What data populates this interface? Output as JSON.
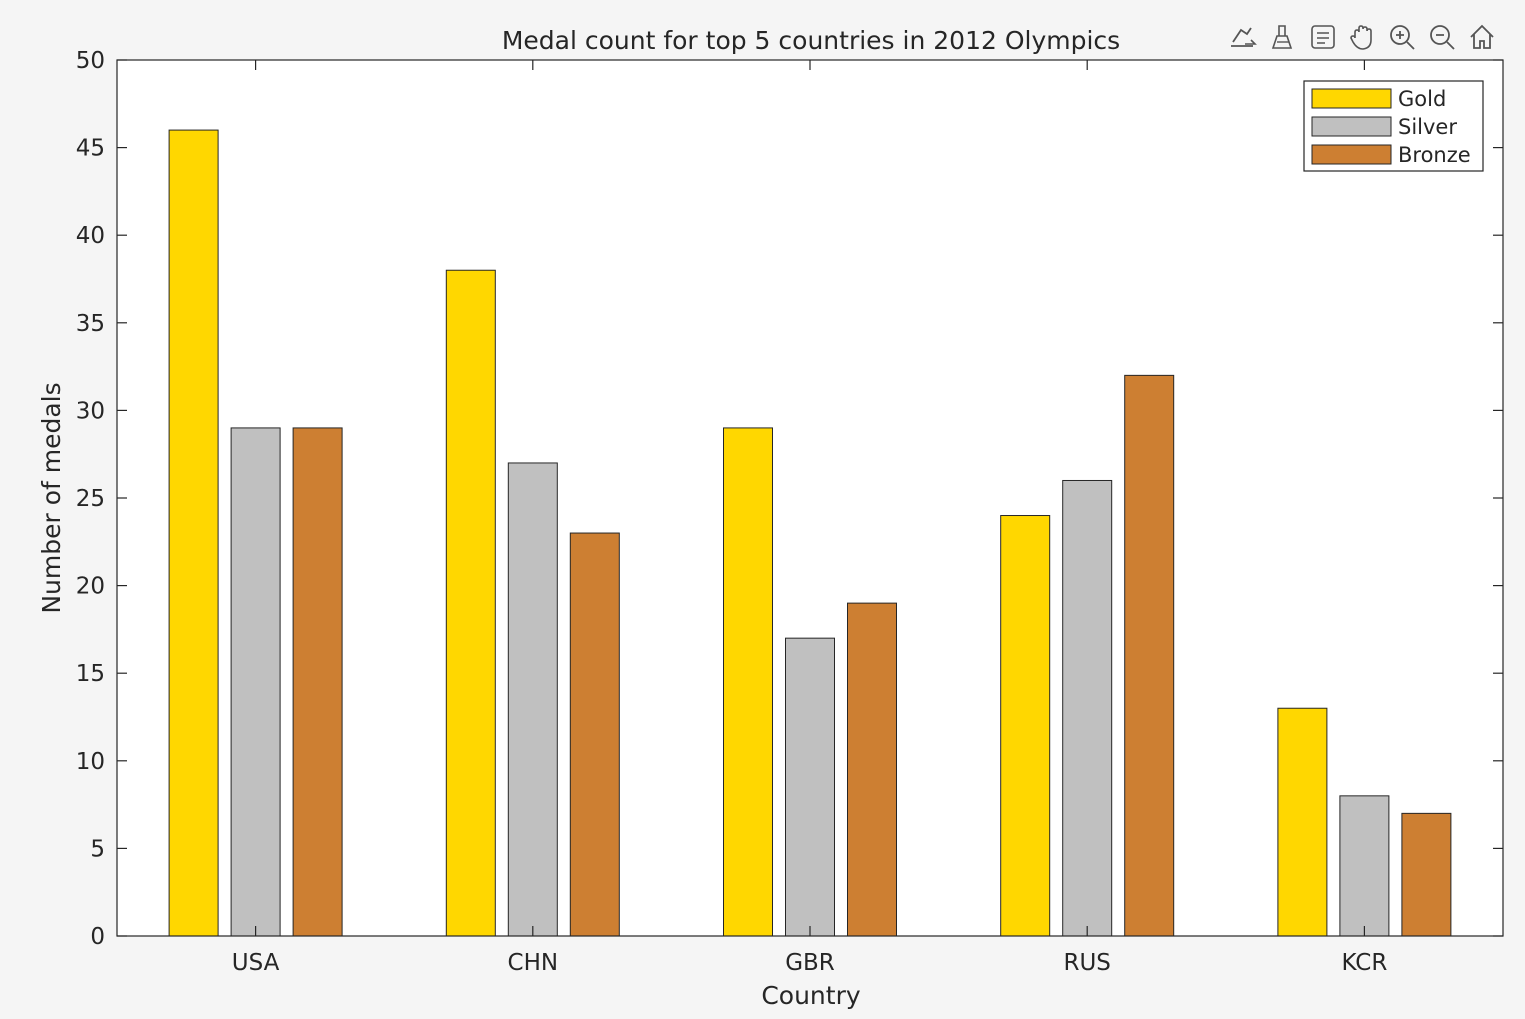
{
  "toolbar": {
    "buttons": [
      {
        "name": "export-icon"
      },
      {
        "name": "brush-icon"
      },
      {
        "name": "data-tips-icon"
      },
      {
        "name": "pan-hand-icon"
      },
      {
        "name": "zoom-in-icon"
      },
      {
        "name": "zoom-out-icon"
      },
      {
        "name": "home-icon"
      }
    ]
  },
  "chart_data": {
    "type": "bar",
    "title": "Medal count for top 5 countries in 2012 Olympics",
    "xlabel": "Country",
    "ylabel": "Number of medals",
    "categories": [
      "USA",
      "CHN",
      "GBR",
      "RUS",
      "KCR"
    ],
    "series": [
      {
        "name": "Gold",
        "color": "#FFD700",
        "values": [
          46,
          38,
          29,
          24,
          13
        ]
      },
      {
        "name": "Silver",
        "color": "#C0C0C0",
        "values": [
          29,
          27,
          17,
          26,
          8
        ]
      },
      {
        "name": "Bronze",
        "color": "#CD7F32",
        "values": [
          29,
          23,
          19,
          32,
          7
        ]
      }
    ],
    "ylim": [
      0,
      50
    ],
    "yticks": [
      "0",
      "5",
      "10",
      "15",
      "20",
      "25",
      "30",
      "35",
      "40",
      "45",
      "50"
    ],
    "grid": false,
    "legend_position": "top-right"
  }
}
